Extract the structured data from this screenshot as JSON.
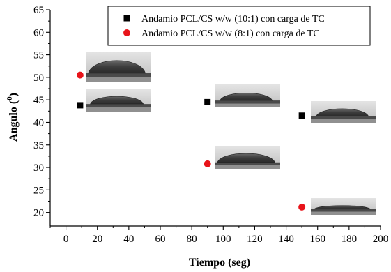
{
  "chart_data": {
    "type": "scatter",
    "xlabel": "Tiempo (seg)",
    "ylabel_main": "Angulo (",
    "ylabel_sup": "0",
    "ylabel_close": ")",
    "xlim": [
      -10,
      200
    ],
    "ylim": [
      17,
      65
    ],
    "xticks": [
      0,
      20,
      40,
      60,
      80,
      100,
      120,
      140,
      160,
      180,
      200
    ],
    "yticks": [
      20,
      25,
      30,
      35,
      40,
      45,
      50,
      55,
      60,
      65
    ],
    "legend_position": "top-right",
    "series": [
      {
        "name": "Andamio PCL/CS w/w (10:1) con carga de TC",
        "marker": "square",
        "color": "#000000",
        "points": [
          {
            "x": 9,
            "y": 43.8
          },
          {
            "x": 90,
            "y": 44.5
          },
          {
            "x": 150,
            "y": 41.5
          }
        ]
      },
      {
        "name": "Andamio PCL/CS w/w (8:1) con carga de TC",
        "marker": "circle",
        "color": "#e8141a",
        "points": [
          {
            "x": 9,
            "y": 50.5
          },
          {
            "x": 90,
            "y": 30.8
          },
          {
            "x": 150,
            "y": 21.2
          }
        ]
      }
    ],
    "annotations": [
      "droplet-image",
      "droplet-image",
      "droplet-image",
      "droplet-image",
      "droplet-image",
      "droplet-image"
    ]
  }
}
